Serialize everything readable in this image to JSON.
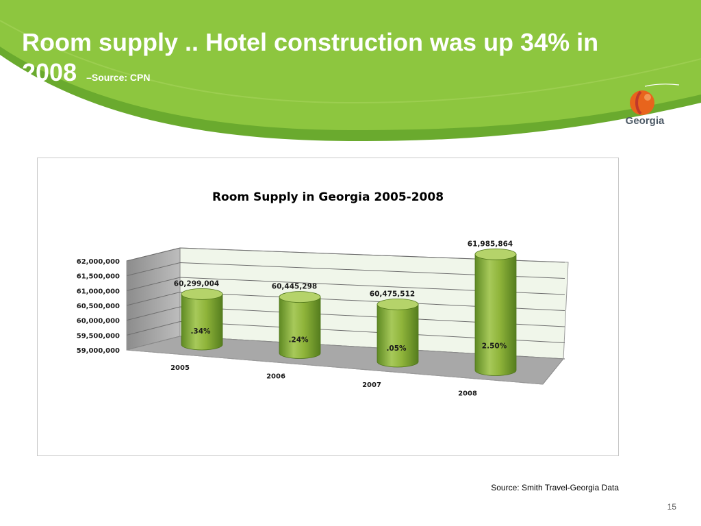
{
  "slide": {
    "title": "Room supply .. Hotel construction was up 34% in 2008",
    "title_note": "–Source: CPN",
    "logo_text": "Georgia",
    "source_note": "Source: Smith Travel-Georgia Data",
    "page_number": "15"
  },
  "colors": {
    "banner_green": "#8dc63f",
    "banner_dark_green": "#6aaa2e",
    "bar_green": "#8fb43a",
    "bar_top": "#b5d36a",
    "peach_orange": "#e8641c",
    "leaf_green": "#8dc63f"
  },
  "chart_data": {
    "type": "bar",
    "style": "3d-cylinder",
    "title": "Room Supply in Georgia 2005-2008",
    "categories": [
      "2005",
      "2006",
      "2007",
      "2008"
    ],
    "values": [
      60299004,
      60445298,
      60475512,
      61985864
    ],
    "value_labels": [
      "60,299,004",
      "60,445,298",
      "60,475,512",
      "61,985,864"
    ],
    "growth_labels": [
      ".34%",
      ".24%",
      ".05%",
      "2.50%"
    ],
    "ylim": [
      59000000,
      62000000
    ],
    "y_ticks": [
      59000000,
      59500000,
      60000000,
      60500000,
      61000000,
      61500000,
      62000000
    ],
    "y_tick_labels": [
      "59,000,000",
      "59,500,000",
      "60,000,000",
      "60,500,000",
      "61,000,000",
      "61,500,000",
      "62,000,000"
    ],
    "grid": true,
    "legend": "none"
  }
}
